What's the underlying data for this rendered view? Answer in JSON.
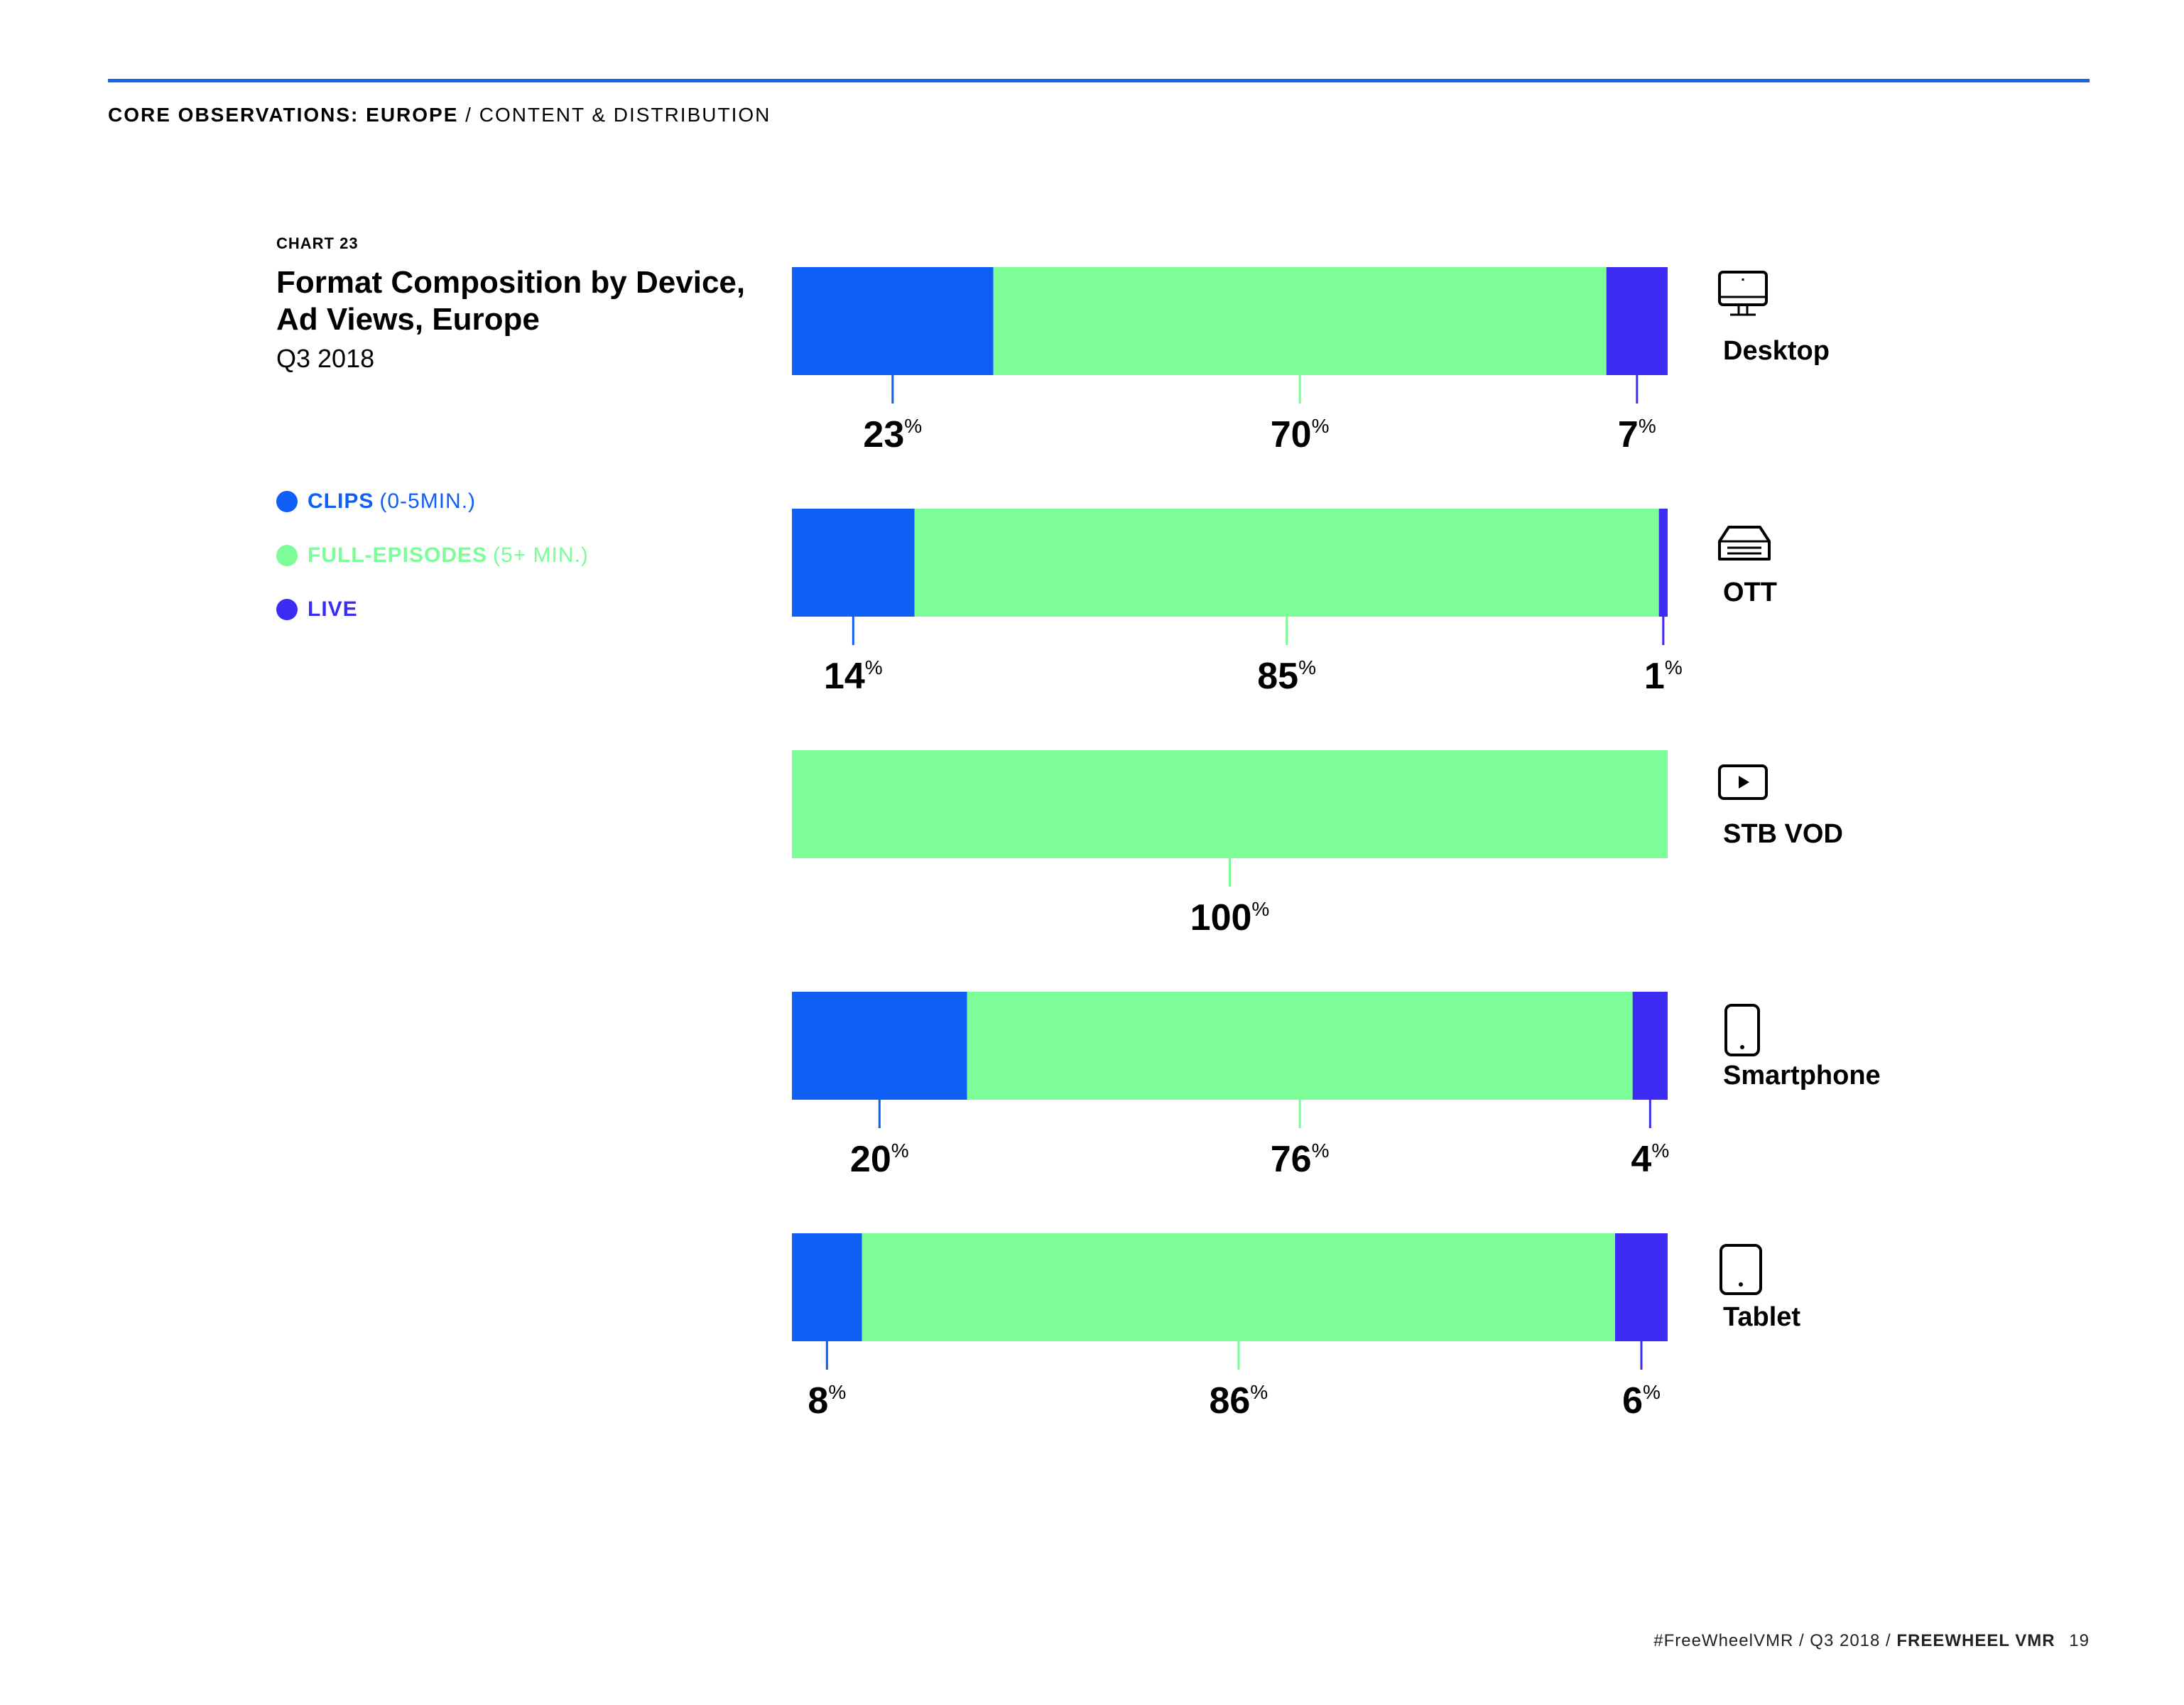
{
  "header": {
    "section": "CORE OBSERVATIONS: EUROPE",
    "separator": " / ",
    "subsection": "CONTENT & DISTRIBUTION"
  },
  "chart_number": "CHART 23",
  "title": "Format Composition by Device, Ad Views, Europe",
  "subtitle": "Q3 2018",
  "legend": [
    {
      "strong": "CLIPS",
      "light": "(0-5MIN.)",
      "color": "#0f5ef5"
    },
    {
      "strong": "FULL-EPISODES",
      "light": "(5+ MIN.)",
      "color": "#7dfd98"
    },
    {
      "strong": "LIVE",
      "light": "",
      "color": "#3c2cf3"
    }
  ],
  "colors": {
    "clips": "#0f5ef5",
    "full_episodes": "#7dfd98",
    "live": "#3c2cf3"
  },
  "chart_data": {
    "type": "bar",
    "orientation": "horizontal",
    "stacked": true,
    "categories": [
      "Desktop",
      "OTT",
      "STB VOD",
      "Smartphone",
      "Tablet"
    ],
    "series": [
      {
        "name": "CLIPS (0-5MIN.)",
        "values": [
          23,
          14,
          0,
          20,
          8
        ]
      },
      {
        "name": "FULL-EPISODES (5+ MIN.)",
        "values": [
          70,
          85,
          100,
          76,
          86
        ]
      },
      {
        "name": "LIVE",
        "values": [
          7,
          1,
          0,
          4,
          6
        ]
      }
    ],
    "unit": "%",
    "xlim": [
      0,
      100
    ],
    "category_icons": [
      "desktop-icon",
      "ott-box-icon",
      "stb-vod-icon",
      "smartphone-icon",
      "tablet-icon"
    ]
  },
  "footer": {
    "hashtag": "#FreeWheelVMR",
    "period": "Q3 2018",
    "brand": "FREEWHEEL VMR",
    "page": "19",
    "sep": "/"
  }
}
